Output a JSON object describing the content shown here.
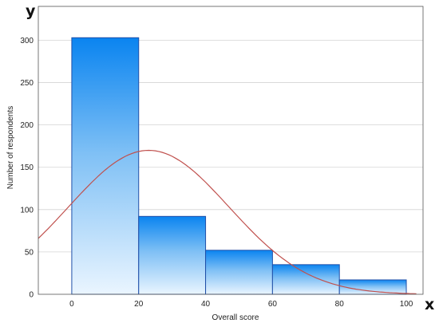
{
  "chart_data": {
    "type": "bar",
    "subtype": "histogram",
    "corner_y_label": "y",
    "corner_x_label": "x",
    "xlabel": "Overall score",
    "ylabel": "Number of respondents",
    "bins": [
      {
        "start": 0,
        "end": 20,
        "value": 303
      },
      {
        "start": 20,
        "end": 40,
        "value": 92
      },
      {
        "start": 40,
        "end": 60,
        "value": 52
      },
      {
        "start": 60,
        "end": 80,
        "value": 35
      },
      {
        "start": 80,
        "end": 100,
        "value": 17
      }
    ],
    "curve": {
      "type": "normal-fit",
      "color": "#c0504d",
      "peak_x": 23,
      "peak_y": 170
    },
    "xlim": [
      -10,
      105
    ],
    "ylim": [
      0,
      340
    ],
    "xticks": [
      0,
      20,
      40,
      60,
      80,
      100
    ],
    "yticks": [
      0,
      50,
      100,
      150,
      200,
      250,
      300
    ],
    "grid": "horizontal",
    "colors": {
      "bar_top": "#0a84f0",
      "bar_bottom": "#eaf5ff",
      "bar_edge": "#1f4fa8",
      "grid": "#d4d4d4"
    }
  }
}
